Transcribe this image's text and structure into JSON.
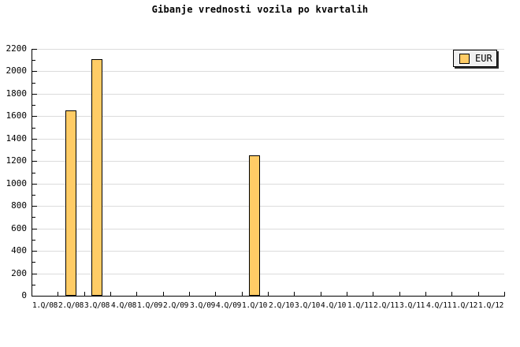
{
  "chart_data": {
    "type": "bar",
    "title": "Gibanje vrednosti vozila po kvartalih",
    "categories": [
      "1.Q/08",
      "2.Q/08",
      "3.Q/08",
      "4.Q/08",
      "1.Q/09",
      "2.Q/09",
      "3.Q/09",
      "4.Q/09",
      "1.Q/10",
      "2.Q/10",
      "3.Q/10",
      "4.Q/10",
      "1.Q/11",
      "2.Q/11",
      "3.Q/11",
      "4.Q/11",
      "1.Q/12",
      "1.Q/12"
    ],
    "series": [
      {
        "name": "EUR",
        "values": [
          null,
          1650,
          2110,
          null,
          null,
          null,
          null,
          null,
          1250,
          null,
          null,
          null,
          null,
          null,
          null,
          null,
          null,
          null
        ]
      }
    ],
    "xlabel": "",
    "ylabel": "",
    "ylim": [
      0,
      2200
    ],
    "y_major_step": 200,
    "y_minor_step": 100,
    "y_tick_labels": [
      "0",
      "200",
      "400",
      "600",
      "800",
      "1000",
      "1200",
      "1400",
      "1600",
      "1800",
      "2000",
      "2200"
    ],
    "grid": "horizontal-major",
    "legend": {
      "position": "top-right",
      "entries": [
        {
          "label": "EUR",
          "swatch_color": "#ffcc66"
        }
      ]
    }
  },
  "colors": {
    "bar_fill": "#ffcc66",
    "bar_border": "#000000",
    "grid": "#dcdcdc",
    "axis": "#000000",
    "legend_bg": "#f0f0f0",
    "legend_shadow": "#2b2b2b",
    "text": "#000000"
  }
}
